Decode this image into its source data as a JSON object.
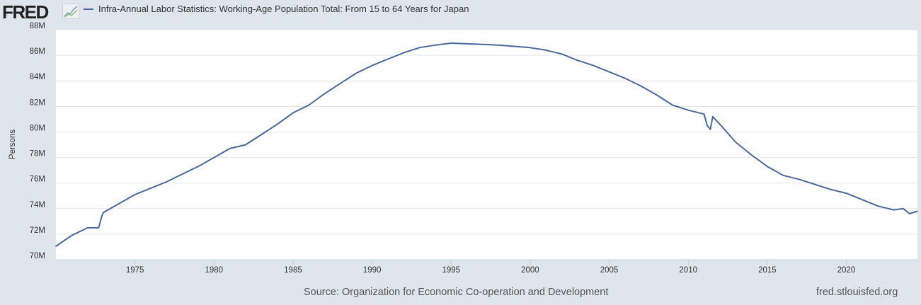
{
  "header": {
    "logo": "FRED",
    "logo_icon": "line-chart-icon"
  },
  "chart_data": {
    "type": "line",
    "title": "",
    "xlabel": "",
    "ylabel": "Persons",
    "ylim": [
      70,
      88
    ],
    "xlim": [
      1970,
      2024.5
    ],
    "y_ticks": [
      "70M",
      "72M",
      "74M",
      "76M",
      "78M",
      "80M",
      "82M",
      "84M",
      "86M",
      "88M"
    ],
    "x_ticks": [
      "1975",
      "1980",
      "1985",
      "1990",
      "1995",
      "2000",
      "2005",
      "2010",
      "2015",
      "2020"
    ],
    "grid": true,
    "legend_position": "top-left",
    "color": "#4a6a9b",
    "series": [
      {
        "name": "Infra-Annual Labor Statistics: Working-Age Population Total: From 15 to 64 Years for Japan",
        "unit": "millions of persons",
        "x": [
          1970,
          1971,
          1972,
          1972.7,
          1972.9,
          1973,
          1974,
          1975,
          1976,
          1977,
          1978,
          1979,
          1980,
          1981,
          1982,
          1983,
          1984,
          1985,
          1986,
          1987,
          1988,
          1989,
          1990,
          1991,
          1992,
          1993,
          1994,
          1995,
          1996,
          1997,
          1998,
          1999,
          2000,
          2001,
          2002,
          2003,
          2004,
          2005,
          2006,
          2007,
          2008,
          2009,
          2010,
          2011,
          2011.2,
          2011.4,
          2011.55,
          2012,
          2013,
          2014,
          2015,
          2016,
          2017,
          2018,
          2019,
          2020,
          2021,
          2022,
          2023,
          2023.6,
          2024,
          2024.5
        ],
        "y": [
          71.05,
          71.9,
          72.5,
          72.5,
          73.4,
          73.7,
          74.4,
          75.1,
          75.6,
          76.1,
          76.7,
          77.3,
          78.0,
          78.7,
          79.0,
          79.8,
          80.6,
          81.5,
          82.1,
          83.0,
          83.8,
          84.6,
          85.2,
          85.7,
          86.2,
          86.6,
          86.8,
          86.95,
          86.9,
          86.85,
          86.8,
          86.7,
          86.6,
          86.4,
          86.1,
          85.6,
          85.2,
          84.7,
          84.2,
          83.6,
          82.9,
          82.1,
          81.7,
          81.4,
          80.5,
          80.2,
          81.2,
          80.6,
          79.2,
          78.2,
          77.3,
          76.6,
          76.3,
          75.9,
          75.5,
          75.2,
          74.7,
          74.2,
          73.9,
          74.0,
          73.6,
          73.8
        ]
      }
    ]
  },
  "footer": {
    "source": "Source: Organization for Economic Co-operation and Development",
    "site": "fred.stlouisfed.org"
  }
}
